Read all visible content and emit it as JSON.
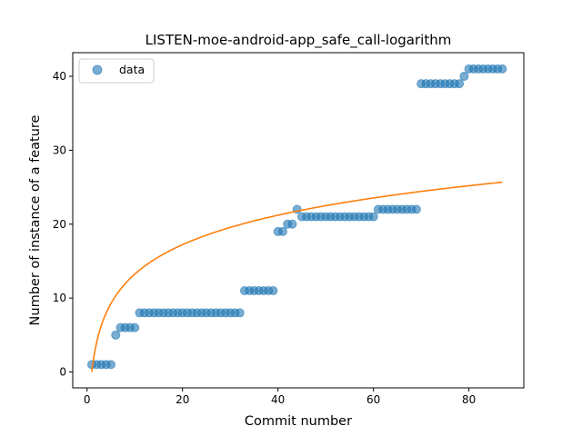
{
  "chart_data": {
    "type": "scatter",
    "title": "LISTEN-moe-android-app_safe_call-logarithm",
    "xlabel": "Commit number",
    "ylabel": "Number of instance of a feature",
    "xlim": [
      -3,
      91.5
    ],
    "ylim": [
      -2.15,
      43.2
    ],
    "xticks": [
      0,
      20,
      40,
      60,
      80
    ],
    "yticks": [
      0,
      10,
      20,
      30,
      40
    ],
    "legend": {
      "position": "top-left",
      "entries": [
        "data"
      ]
    },
    "grid": false,
    "series": [
      {
        "name": "data",
        "kind": "scatter",
        "color": "#1f77b4",
        "opacity": 0.6,
        "x": [
          1,
          2,
          3,
          4,
          5,
          6,
          7,
          8,
          9,
          10,
          11,
          12,
          13,
          14,
          15,
          16,
          17,
          18,
          19,
          20,
          21,
          22,
          23,
          24,
          25,
          26,
          27,
          28,
          29,
          30,
          31,
          32,
          33,
          34,
          35,
          36,
          37,
          38,
          39,
          40,
          41,
          42,
          43,
          44,
          45,
          46,
          47,
          48,
          49,
          50,
          51,
          52,
          53,
          54,
          55,
          56,
          57,
          58,
          59,
          60,
          61,
          62,
          63,
          64,
          65,
          66,
          67,
          68,
          69,
          70,
          71,
          72,
          73,
          74,
          75,
          76,
          77,
          78,
          79,
          80,
          81,
          82,
          83,
          84,
          85,
          86,
          87
        ],
        "y": [
          1,
          1,
          1,
          1,
          1,
          5,
          6,
          6,
          6,
          6,
          8,
          8,
          8,
          8,
          8,
          8,
          8,
          8,
          8,
          8,
          8,
          8,
          8,
          8,
          8,
          8,
          8,
          8,
          8,
          8,
          8,
          8,
          11,
          11,
          11,
          11,
          11,
          11,
          11,
          19,
          19,
          20,
          20,
          22,
          21,
          21,
          21,
          21,
          21,
          21,
          21,
          21,
          21,
          21,
          21,
          21,
          21,
          21,
          21,
          21,
          22,
          22,
          22,
          22,
          22,
          22,
          22,
          22,
          22,
          39,
          39,
          39,
          39,
          39,
          39,
          39,
          39,
          39,
          40,
          41,
          41,
          41,
          41,
          41,
          41,
          41,
          41
        ]
      },
      {
        "name": "",
        "kind": "line",
        "color": "#ff7f0e",
        "function": "a*ln(x)+b",
        "a": 5.75,
        "b": 0.0,
        "x_range": [
          1,
          87
        ]
      }
    ]
  }
}
